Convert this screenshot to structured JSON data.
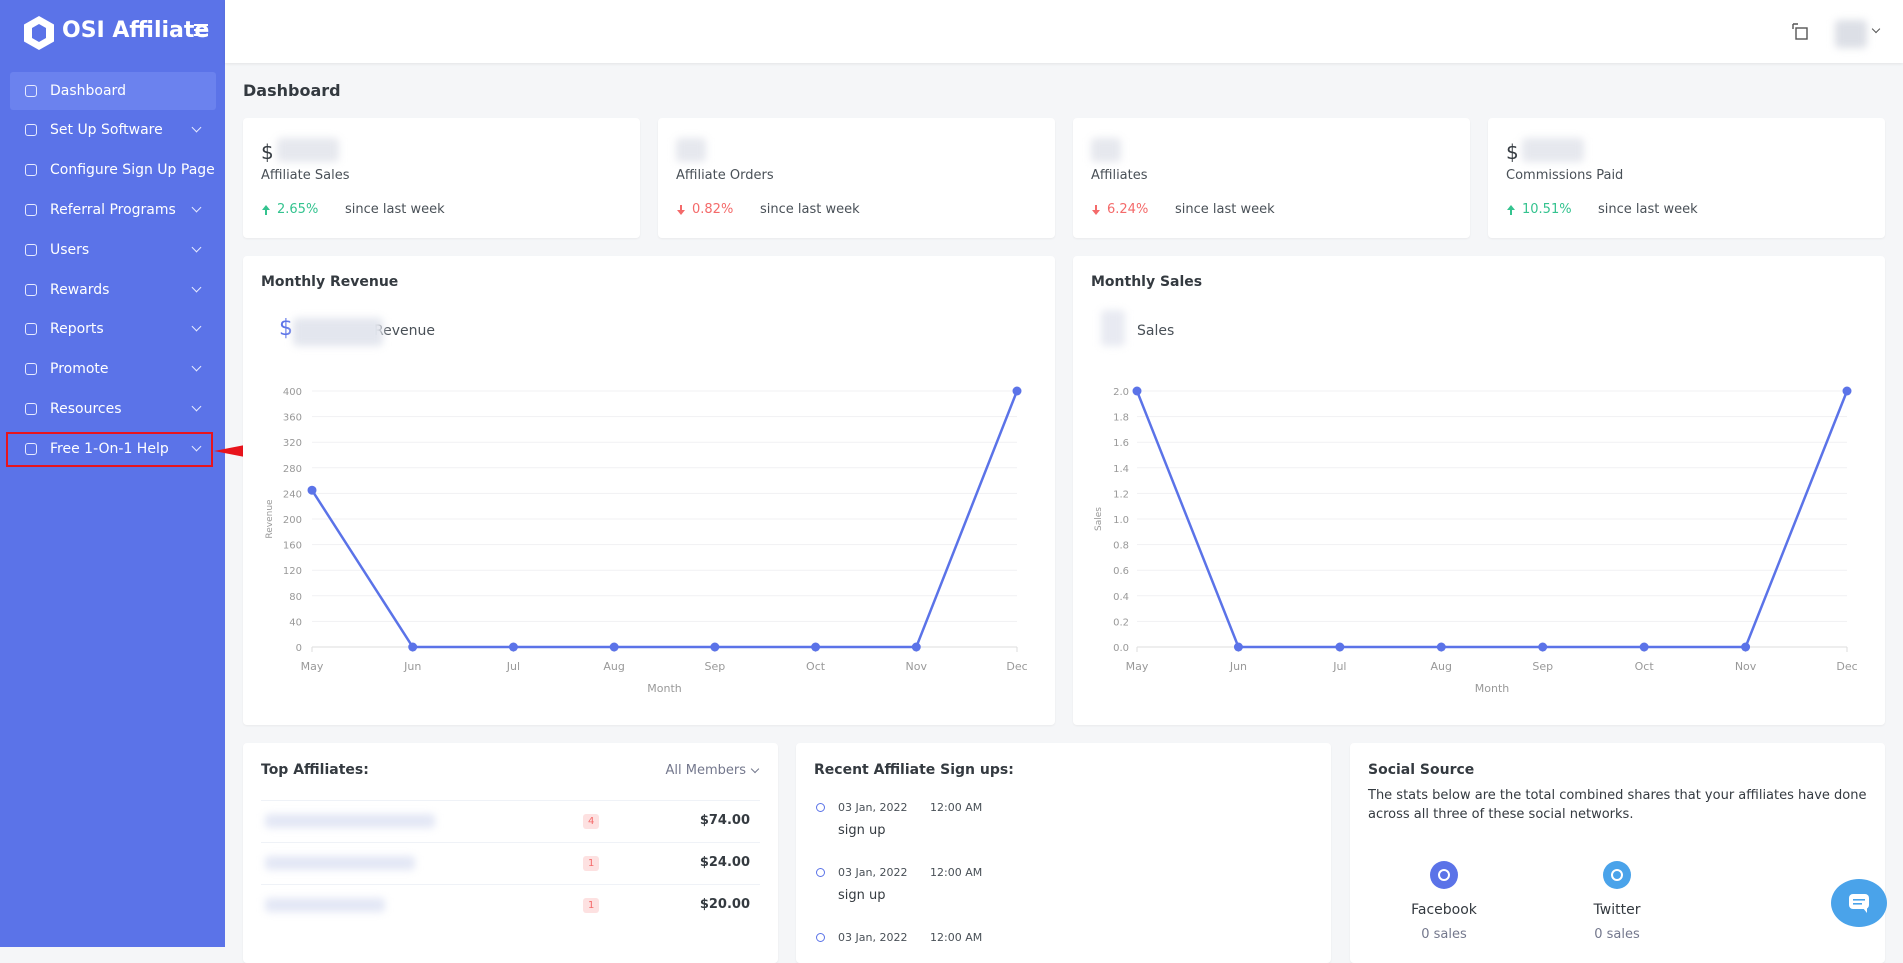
{
  "brand": "OSI Affiliate",
  "menu": [
    {
      "label": "Dashboard",
      "submenu": false,
      "active": true
    },
    {
      "label": "Set Up Software",
      "submenu": true
    },
    {
      "label": "Configure Sign Up Page",
      "submenu": false
    },
    {
      "label": "Referral Programs",
      "submenu": true
    },
    {
      "label": "Users",
      "submenu": true
    },
    {
      "label": "Rewards",
      "submenu": true
    },
    {
      "label": "Reports",
      "submenu": true
    },
    {
      "label": "Promote",
      "submenu": true
    },
    {
      "label": "Resources",
      "submenu": true
    },
    {
      "label": "Free 1-On-1 Help",
      "submenu": true
    }
  ],
  "page_title": "Dashboard",
  "stats": [
    {
      "prefix": "$",
      "label": "Affiliate Sales",
      "change": "2.65%",
      "direction": "up",
      "note": "since last week"
    },
    {
      "label": "Affiliate Orders",
      "change": "0.82%",
      "direction": "down",
      "note": "since last week"
    },
    {
      "label": "Affiliates",
      "change": "6.24%",
      "direction": "down",
      "note": "since last week"
    },
    {
      "prefix": "$",
      "label": "Commissions Paid",
      "change": "10.51%",
      "direction": "up",
      "note": "since last week"
    }
  ],
  "chart_data": [
    {
      "type": "line",
      "title": "Monthly Revenue",
      "legend_prefix": "$",
      "categories": [
        "May",
        "Jun",
        "Jul",
        "Aug",
        "Sep",
        "Oct",
        "Nov",
        "Dec"
      ],
      "series": [
        {
          "name": "Revenue",
          "color": "#5b73e8",
          "values": [
            245,
            0,
            0,
            0,
            0,
            0,
            0,
            400
          ]
        }
      ],
      "ylim": [
        0,
        400
      ],
      "yticks": [
        0,
        40,
        80,
        120,
        160,
        200,
        240,
        280,
        320,
        360,
        400
      ],
      "x_label": "Month",
      "y_label": "Revenue",
      "grid": true
    },
    {
      "type": "line",
      "title": "Monthly Sales",
      "categories": [
        "May",
        "Jun",
        "Jul",
        "Aug",
        "Sep",
        "Oct",
        "Nov",
        "Dec"
      ],
      "series": [
        {
          "name": "Sales",
          "color": "#5b73e8",
          "values": [
            2,
            0,
            0,
            0,
            0,
            0,
            0,
            2
          ]
        }
      ],
      "ylim": [
        0,
        2
      ],
      "yticks": [
        {
          "value": 0,
          "label": "0.0"
        },
        0.2,
        0.4,
        0.6,
        0.8,
        {
          "value": 1,
          "label": "1.0"
        },
        1.2,
        1.4,
        1.6,
        1.8,
        {
          "value": 2,
          "label": "2.0"
        }
      ],
      "x_label": "Month",
      "y_label": "Sales",
      "grid": true
    }
  ],
  "top_affiliates": {
    "title": "Top Affiliates:",
    "filter": "All Members",
    "rows": [
      {
        "count": "4",
        "amount": "$74.00"
      },
      {
        "count": "1",
        "amount": "$24.00"
      },
      {
        "count": "1",
        "amount": "$20.00"
      }
    ]
  },
  "signups": {
    "title": "Recent Affiliate Sign ups:",
    "items": [
      {
        "date": "03 Jan, 2022",
        "time": "12:00 AM",
        "event": "sign up"
      },
      {
        "date": "03 Jan, 2022",
        "time": "12:00 AM",
        "event": "sign up"
      },
      {
        "date": "03 Jan, 2022",
        "time": "12:00 AM"
      }
    ]
  },
  "social": {
    "title": "Social Source",
    "description": "The stats below are the total combined shares that your affiliates have done across all three of these social networks.",
    "networks": [
      {
        "name": "Facebook",
        "sales": "0 sales",
        "color": "#5b73e8"
      },
      {
        "name": "Twitter",
        "sales": "0 sales",
        "color": "#4aa3ea"
      }
    ]
  }
}
